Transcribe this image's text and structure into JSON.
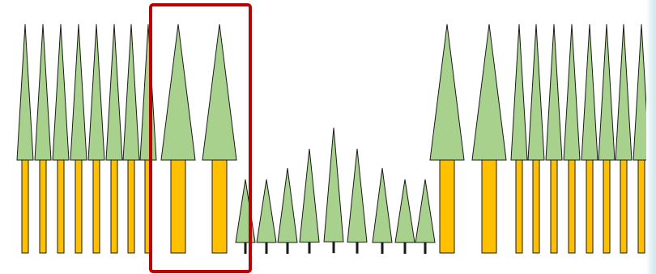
{
  "scene": {
    "description_free": true,
    "colors": {
      "background": "#ffffff",
      "foliage": "#a8d18d",
      "trunk": "#ffc000",
      "outline": "#1a1a1a",
      "highlight_box": "#c00000",
      "edge_band": "#d3ebf1"
    },
    "groups": [
      {
        "id": "left-tall-narrow",
        "count": 8,
        "kind": "tall-narrow"
      },
      {
        "id": "highlighted-wide",
        "count": 2,
        "kind": "tall-wide",
        "highlighted": true
      },
      {
        "id": "short-trees",
        "count": 9,
        "kind": "short-with-dark-stem"
      },
      {
        "id": "right-tall-wide",
        "count": 2,
        "kind": "tall-wide"
      },
      {
        "id": "right-tall-narrow",
        "count": 8,
        "kind": "tall-narrow"
      }
    ]
  }
}
